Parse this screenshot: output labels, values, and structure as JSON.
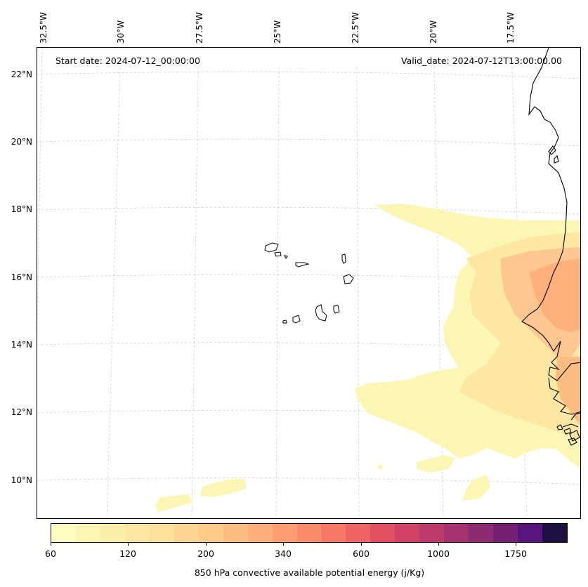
{
  "map": {
    "start_date": "Start date: 2024-07-12_00:00:00",
    "valid_date": "Valid_date: 2024-07-12T13:00:00.00",
    "longitude_labels": [
      "32.5°W",
      "30°W",
      "27.5°W",
      "25°W",
      "22.5°W",
      "20°W",
      "17.5°W"
    ],
    "latitude_labels": [
      "22°N",
      "20°N",
      "18°N",
      "16°N",
      "14°N",
      "12°N",
      "10°N"
    ],
    "features": [
      "cape-verde-islands",
      "west-african-coastline",
      "cape-field"
    ]
  },
  "colorbar": {
    "title": "850 hPa convective available potential energy (j/Kg)",
    "tick_labels": [
      "60",
      "120",
      "200",
      "340",
      "600",
      "1000",
      "1750"
    ],
    "colors": [
      "#fcfdbf",
      "#fcf6b5",
      "#fcefac",
      "#fde7a3",
      "#fde09a",
      "#fed691",
      "#fecb88",
      "#febd80",
      "#feae78",
      "#fd9d71",
      "#fb8c6b",
      "#f77866",
      "#ef6463",
      "#e35063",
      "#d24267",
      "#bd3a6d",
      "#a5316f",
      "#8c2a72",
      "#72206f",
      "#58157e",
      "#1e1040"
    ]
  }
}
